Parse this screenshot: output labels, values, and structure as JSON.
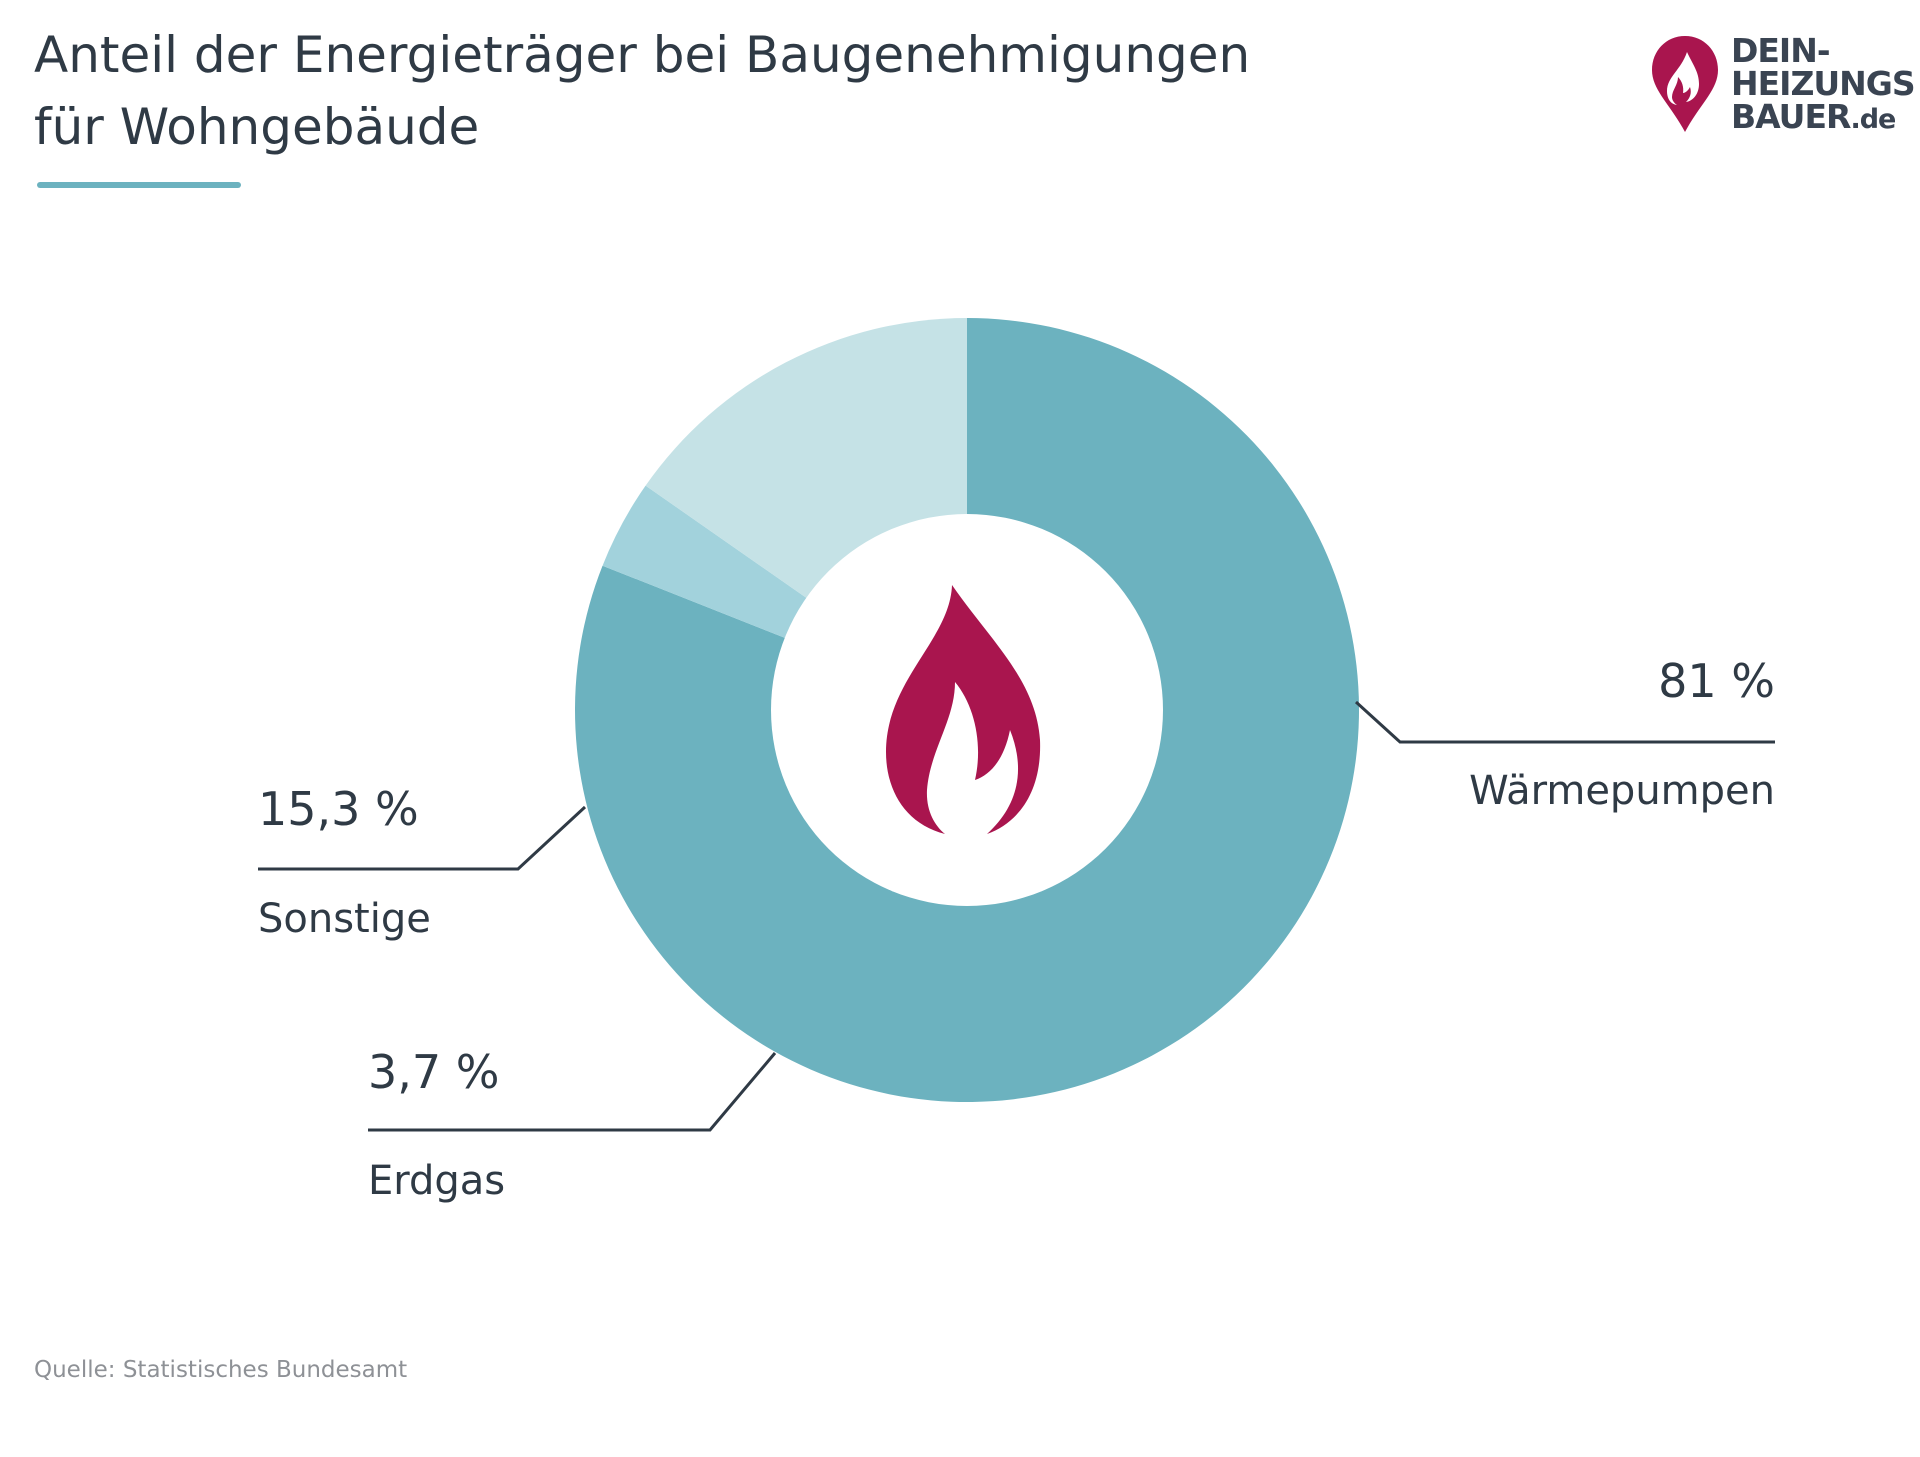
{
  "title_lines": [
    "Anteil der Energieträger bei Baugenehmigungen",
    "für Wohngebäude"
  ],
  "logo": {
    "line1": "DEIN-",
    "line2": "HEIZUNGS",
    "line3a": "BAUER",
    "line3b": ".de"
  },
  "source": "Quelle: Statistisches Bundesamt",
  "colors": {
    "title": "#2f3a45",
    "accent": "#6cb2bf",
    "brand": "#a9154e",
    "leader": "#2f3a45",
    "source_text": "#8e9196"
  },
  "center_icon": "flame-icon",
  "chart_data": {
    "type": "pie",
    "variant": "donut",
    "unit": "%",
    "categories": [
      "Wärmepumpen",
      "Erdgas",
      "Sonstige"
    ],
    "values": [
      81,
      3.7,
      15.3
    ],
    "value_labels": [
      "81 %",
      "3,7 %",
      "15,3 %"
    ],
    "colors": [
      "#6cb2bf",
      "#a2d2dc",
      "#c5e2e6"
    ],
    "start_angle_deg": 270,
    "direction": "clockwise",
    "legend": "none",
    "title": "Anteil der Energieträger bei Baugenehmigungen für Wohngebäude"
  }
}
